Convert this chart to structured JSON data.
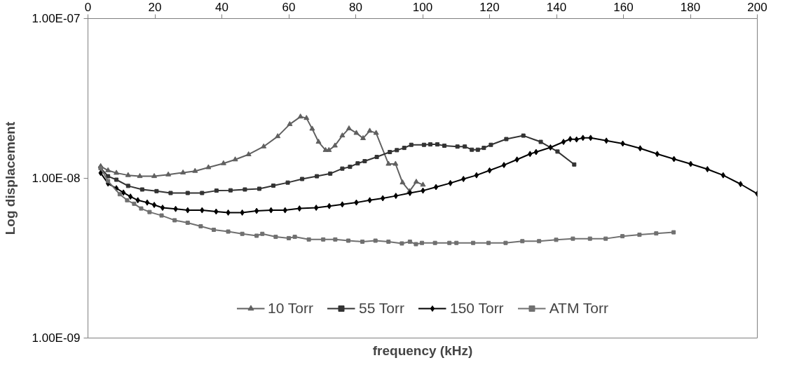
{
  "chart_data": {
    "type": "line",
    "xlabel": "frequency (kHz)",
    "ylabel": "Log displacement",
    "log": "y",
    "grid": false,
    "legend": "bottom",
    "line_style": "solid",
    "xlim": [
      0,
      200
    ],
    "xticks": [
      0,
      20,
      40,
      60,
      80,
      100,
      120,
      140,
      160,
      180,
      200
    ],
    "ylim": [
      1e-09,
      1e-07
    ],
    "yticks": [
      {
        "value": 1e-09,
        "label": "1.00E-09"
      },
      {
        "value": 1e-08,
        "label": "1.00E-08"
      },
      {
        "value": 1e-07,
        "label": "1.00E-07"
      }
    ],
    "series": [
      {
        "name": "10 Torr",
        "color": "#606060",
        "marker": "triangle",
        "x": [
          3.8,
          6,
          8.5,
          12,
          15.5,
          19.8,
          24,
          28.4,
          32,
          36,
          40.5,
          44,
          48,
          52.5,
          56.7,
          60.3,
          63.5,
          65.3,
          67,
          68.9,
          71,
          72,
          73.8,
          76,
          78,
          80.2,
          82.2,
          84.2,
          86.1,
          89.8,
          91.9,
          94,
          96.1,
          98.1,
          100.1
        ],
        "values": [
          1.19e-08,
          1.12e-08,
          1.08e-08,
          1.045e-08,
          1.03e-08,
          1.03e-08,
          1.055e-08,
          1.085e-08,
          1.11e-08,
          1.17e-08,
          1.24e-08,
          1.31e-08,
          1.41e-08,
          1.58e-08,
          1.83e-08,
          2.18e-08,
          2.43e-08,
          2.38e-08,
          2.04e-08,
          1.69e-08,
          1.5e-08,
          1.5e-08,
          1.6e-08,
          1.85e-08,
          2.05e-08,
          1.92e-08,
          1.78e-08,
          1.98e-08,
          1.92e-08,
          1.23e-08,
          1.23e-08,
          9.4e-09,
          8.3e-09,
          9.5e-09,
          9.1e-09
        ]
      },
      {
        "name": "55 Torr",
        "color": "#333333",
        "marker": "square",
        "x": [
          3.8,
          6,
          8.5,
          12,
          16.2,
          20.5,
          24.7,
          29.8,
          34.1,
          38.4,
          42.6,
          46.9,
          51.2,
          55.4,
          59.7,
          64,
          68.4,
          72.4,
          76,
          78.3,
          80.6,
          82.7,
          86.3,
          90.2,
          92.3,
          94.5,
          96.6,
          100.4,
          102.3,
          104.4,
          106.5,
          110.4,
          112.6,
          114.7,
          116.5,
          118.3,
          120.4,
          125,
          130.1,
          135.3,
          140.3,
          145.3
        ],
        "values": [
          1.16e-08,
          1.03e-08,
          9.8e-09,
          8.96e-09,
          8.51e-09,
          8.31e-09,
          8.09e-09,
          8.09e-09,
          8.09e-09,
          8.37e-09,
          8.41e-09,
          8.51e-09,
          8.6e-09,
          9e-09,
          9.4e-09,
          9.9e-09,
          1.03e-08,
          1.07e-08,
          1.15e-08,
          1.18e-08,
          1.24e-08,
          1.28e-08,
          1.36e-08,
          1.46e-08,
          1.5e-08,
          1.55e-08,
          1.62e-08,
          1.62e-08,
          1.63e-08,
          1.63e-08,
          1.6e-08,
          1.58e-08,
          1.58e-08,
          1.51e-08,
          1.51e-08,
          1.55e-08,
          1.62e-08,
          1.76e-08,
          1.85e-08,
          1.69e-08,
          1.47e-08,
          1.22e-08
        ]
      },
      {
        "name": "150 Torr",
        "color": "#000000",
        "marker": "diamond",
        "x": [
          3.8,
          6,
          8.5,
          10.6,
          12.7,
          14.9,
          17.7,
          19.8,
          22.3,
          26.2,
          29.8,
          34.1,
          38.3,
          41.9,
          46.1,
          50.4,
          54.7,
          58.9,
          63.2,
          68.2,
          72.1,
          76,
          80.2,
          84.2,
          88.1,
          92,
          96.2,
          100.1,
          104,
          108.3,
          112.2,
          116.1,
          120,
          124.3,
          128.2,
          132.1,
          133.9,
          138.2,
          142.1,
          144.1,
          146,
          147.9,
          150.2,
          154.9,
          159.8,
          165,
          170.1,
          175.1,
          180.1,
          185.1,
          189.8,
          195,
          200
        ],
        "values": [
          1.08e-08,
          9.27e-09,
          8.66e-09,
          8.14e-09,
          7.68e-09,
          7.29e-09,
          7.05e-09,
          6.81e-09,
          6.54e-09,
          6.43e-09,
          6.31e-09,
          6.31e-09,
          6.19e-09,
          6.1e-09,
          6.1e-09,
          6.25e-09,
          6.31e-09,
          6.31e-09,
          6.47e-09,
          6.54e-09,
          6.7e-09,
          6.86e-09,
          7.05e-09,
          7.29e-09,
          7.5e-09,
          7.76e-09,
          8.09e-09,
          8.37e-09,
          8.81e-09,
          9.33e-09,
          9.9e-09,
          1.045e-08,
          1.12e-08,
          1.21e-08,
          1.31e-08,
          1.42e-08,
          1.46e-08,
          1.56e-08,
          1.69e-08,
          1.76e-08,
          1.75e-08,
          1.79e-08,
          1.79e-08,
          1.72e-08,
          1.65e-08,
          1.54e-08,
          1.42e-08,
          1.32e-08,
          1.23e-08,
          1.14e-08,
          1.045e-08,
          9.2e-09,
          8e-09
        ]
      },
      {
        "name": "ATM Torr",
        "color": "#707070",
        "marker": "square",
        "x": [
          3.8,
          6,
          9.5,
          11.7,
          13.8,
          15.9,
          18.4,
          22,
          25.9,
          29.8,
          33.7,
          37.6,
          41.9,
          46.1,
          50.4,
          52.1,
          56.1,
          60,
          61.8,
          66,
          70.3,
          73.9,
          77.8,
          82,
          85.9,
          89.8,
          93.8,
          96.2,
          98,
          99.8,
          103.7,
          108,
          110.1,
          115.1,
          119.7,
          124.8,
          129.8,
          134.8,
          139.9,
          144.9,
          150,
          154.7,
          159.7,
          164.8,
          169.8,
          175
        ],
        "values": [
          1.16e-08,
          9.6e-09,
          7.95e-09,
          7.29e-09,
          6.93e-09,
          6.47e-09,
          6.15e-09,
          5.85e-09,
          5.46e-09,
          5.27e-09,
          5.01e-09,
          4.76e-09,
          4.64e-09,
          4.49e-09,
          4.37e-09,
          4.49e-09,
          4.3e-09,
          4.22e-09,
          4.3e-09,
          4.14e-09,
          4.14e-09,
          4.14e-09,
          4.07e-09,
          4.01e-09,
          4.07e-09,
          4.01e-09,
          3.91e-09,
          4.01e-09,
          3.87e-09,
          3.94e-09,
          3.94e-09,
          3.94e-09,
          3.94e-09,
          3.94e-09,
          3.94e-09,
          3.94e-09,
          4.04e-09,
          4.04e-09,
          4.12e-09,
          4.19e-09,
          4.19e-09,
          4.19e-09,
          4.34e-09,
          4.43e-09,
          4.52e-09,
          4.59e-09
        ]
      }
    ]
  }
}
